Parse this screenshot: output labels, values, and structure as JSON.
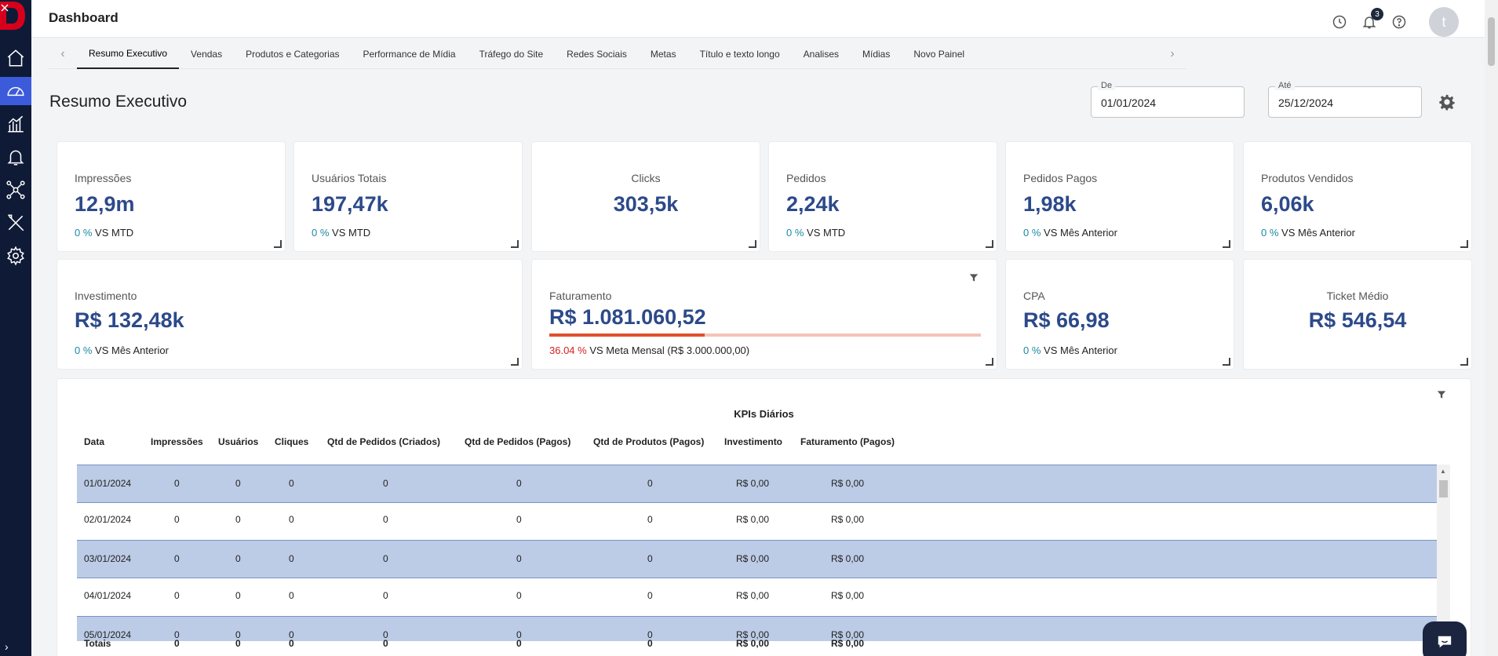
{
  "header": {
    "title": "Dashboard",
    "notification_count": "3",
    "avatar_initial": "t"
  },
  "tabs": [
    "Resumo Executivo",
    "Vendas",
    "Produtos e Categorias",
    "Performance de Mídia",
    "Tráfego do Site",
    "Redes Sociais",
    "Metas",
    "Título e texto longo",
    "Analises",
    "Mídias",
    "Novo Painel"
  ],
  "page": {
    "title": "Resumo Executivo",
    "date_from_label": "De",
    "date_from": "01/01/2024",
    "date_to_label": "Até",
    "date_to": "25/12/2024"
  },
  "cards_row1": [
    {
      "label": "Impressões",
      "value": "12,9m",
      "pct": "0 %",
      "comp": "VS MTD"
    },
    {
      "label": "Usuários Totais",
      "value": "197,47k",
      "pct": "0 %",
      "comp": "VS MTD"
    },
    {
      "label": "Clicks",
      "value": "303,5k"
    },
    {
      "label": "Pedidos",
      "value": "2,24k",
      "pct": "0 %",
      "comp": "VS MTD"
    },
    {
      "label": "Pedidos Pagos",
      "value": "1,98k",
      "pct": "0 %",
      "comp": "VS Mês Anterior"
    },
    {
      "label": "Produtos Vendidos",
      "value": "6,06k",
      "pct": "0 %",
      "comp": "VS Mês Anterior"
    }
  ],
  "cards_row2": [
    {
      "label": "Investimento",
      "value": "R$ 132,48k",
      "pct": "0 %",
      "comp": "VS Mês Anterior"
    },
    {
      "label": "Faturamento",
      "value": "R$ 1.081.060,52",
      "pct": "36.04 %",
      "comp": "VS Meta Mensal (R$ 3.000.000,00)",
      "progress": 0.3604
    },
    {
      "label": "CPA",
      "value": "R$ 66,98",
      "pct": "0 %",
      "comp": "VS Mês Anterior"
    },
    {
      "label": "Ticket Médio",
      "value": "R$ 546,54"
    }
  ],
  "table": {
    "title": "KPIs Diários",
    "columns": [
      "Data",
      "Impressões",
      "Usuários",
      "Cliques",
      "Qtd de Pedidos (Criados)",
      "Qtd de Pedidos (Pagos)",
      "Qtd de Produtos (Pagos)",
      "Investimento",
      "Faturamento (Pagos)"
    ],
    "rows": [
      [
        "01/01/2024",
        "0",
        "0",
        "0",
        "0",
        "0",
        "0",
        "R$ 0,00",
        "R$ 0,00"
      ],
      [
        "02/01/2024",
        "0",
        "0",
        "0",
        "0",
        "0",
        "0",
        "R$ 0,00",
        "R$ 0,00"
      ],
      [
        "03/01/2024",
        "0",
        "0",
        "0",
        "0",
        "0",
        "0",
        "R$ 0,00",
        "R$ 0,00"
      ],
      [
        "04/01/2024",
        "0",
        "0",
        "0",
        "0",
        "0",
        "0",
        "R$ 0,00",
        "R$ 0,00"
      ],
      [
        "05/01/2024",
        "0",
        "0",
        "0",
        "0",
        "0",
        "0",
        "R$ 0,00",
        "R$ 0,00"
      ]
    ],
    "total": [
      "Totais",
      "0",
      "0",
      "0",
      "0",
      "0",
      "0",
      "R$ 0,00",
      "R$ 0,00"
    ]
  },
  "colors": {
    "sidebar": "#0f1a36",
    "accent": "#3b5bdb",
    "kpi_value": "#2c4a8a",
    "positive_pct": "#1a8aa0",
    "negative_pct": "#d42020",
    "progress_fill": "#e0502d",
    "row_stripe": "#bccbe6"
  },
  "icons": {
    "sidebar": [
      "home-icon",
      "dashboard-icon",
      "chart-icon",
      "bell-icon",
      "network-icon",
      "tools-icon",
      "settings-icon"
    ],
    "header": [
      "history-icon",
      "notification-icon",
      "help-icon"
    ]
  }
}
